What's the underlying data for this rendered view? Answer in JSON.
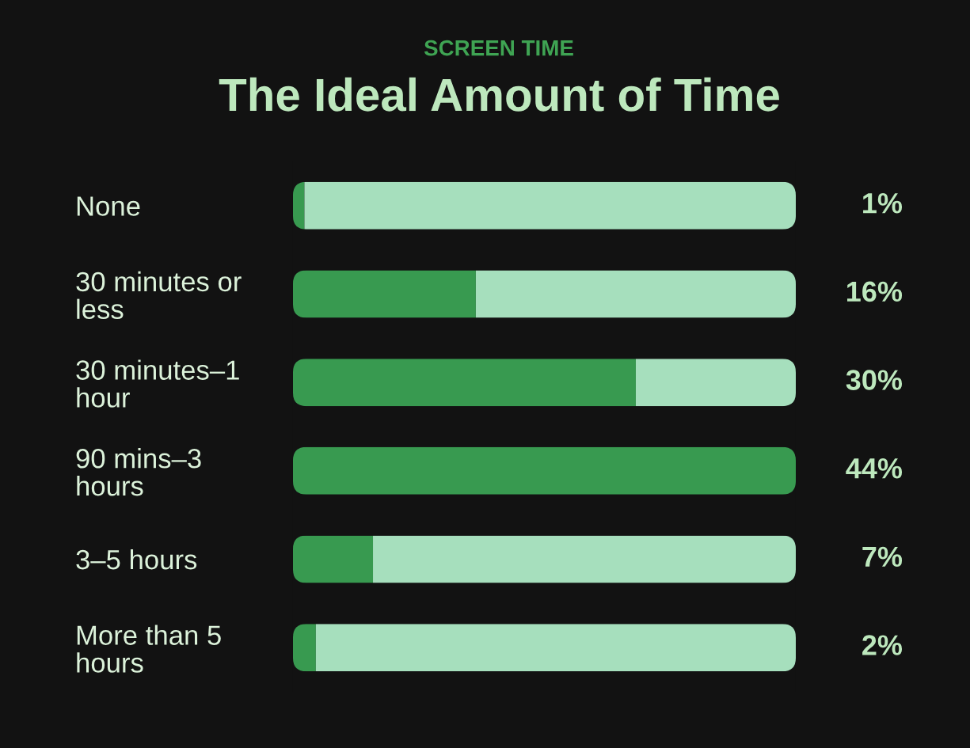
{
  "chart_data": {
    "type": "bar",
    "orientation": "horizontal",
    "stacked": true,
    "subtitle": "SCREEN TIME",
    "title": "The Ideal Amount of Time",
    "categories": [
      "None",
      "30 minutes or\nless",
      "30 minutes–1\nhour",
      "90 mins–3\nhours",
      "3–5 hours",
      "More than 5\nhours"
    ],
    "series": [
      {
        "color": "#389a50",
        "values": [
          1,
          16,
          30,
          44,
          7,
          2
        ],
        "value_labels": [
          "1%",
          "16%",
          "30%",
          "44%",
          "7%",
          "2%"
        ]
      },
      {
        "color": "#a6dfbd",
        "values": [
          43,
          28,
          14,
          0,
          37,
          42
        ]
      }
    ],
    "xlim": [
      0,
      44
    ],
    "tick_labels": "y"
  }
}
